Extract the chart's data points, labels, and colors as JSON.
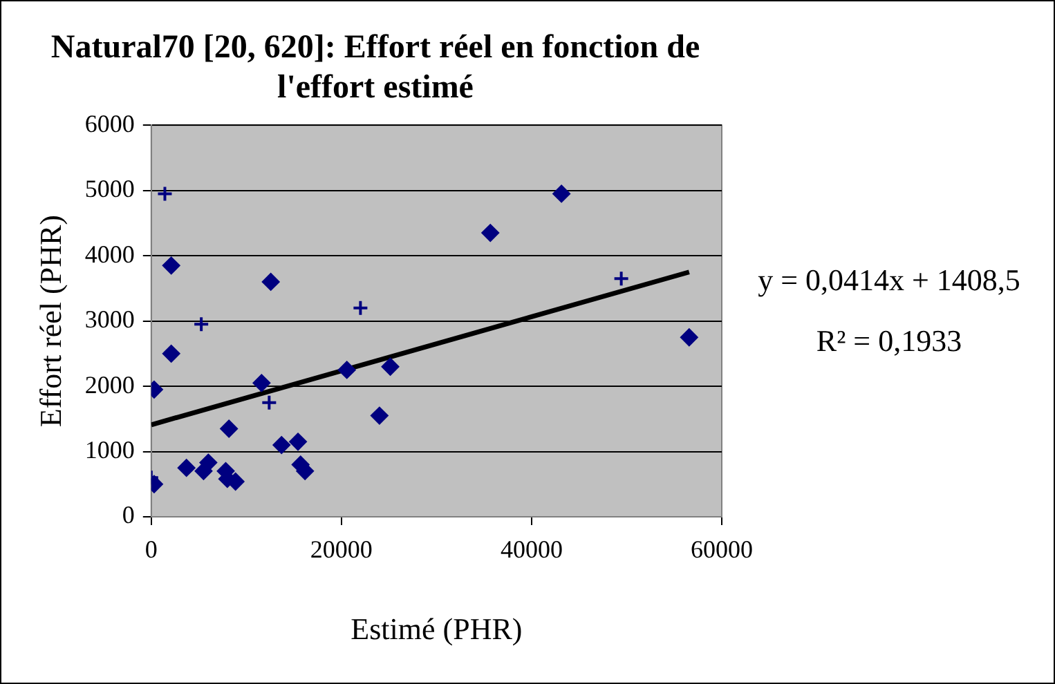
{
  "chart_data": {
    "type": "scatter",
    "title": "Natural70 [20, 620]: Effort réel en fonction de l'effort estimé",
    "xlabel": "Estimé (PHR)",
    "ylabel": "Effort réel (PHR)",
    "xlim": [
      0,
      60000
    ],
    "xticks": [
      0,
      20000,
      40000,
      60000
    ],
    "ylim": [
      0,
      6000
    ],
    "yticks": [
      0,
      1000,
      2000,
      3000,
      4000,
      5000,
      6000
    ],
    "grid": "y",
    "legend": false,
    "marker": "diamond",
    "series": [
      {
        "color": "#000080",
        "x": [
          300,
          300,
          2100,
          2100,
          3700,
          5500,
          6000,
          7830,
          8000,
          8860,
          8170,
          11600,
          12570,
          13700,
          15430,
          15700,
          16170,
          20570,
          25140,
          24000,
          35660,
          43140,
          56570
        ],
        "values": [
          500,
          1950,
          2500,
          3850,
          750,
          700,
          830,
          700,
          580,
          540,
          1350,
          2050,
          3600,
          1100,
          1150,
          800,
          700,
          2250,
          2300,
          1550,
          4350,
          4950,
          2750
        ]
      },
      {
        "color": "#000080",
        "marker": "cross",
        "x": [
          0,
          1430,
          5260,
          12400,
          22000,
          49430
        ],
        "values": [
          600,
          4950,
          2950,
          1750,
          3200,
          3650
        ]
      },
      {
        "type": "line",
        "color": "#000000",
        "marker": "none",
        "x": [
          0,
          56570
        ],
        "values": [
          1410,
          3750
        ]
      }
    ],
    "annotations": [
      "y = 0,0414x + 1408,5",
      "R² = 0,1933"
    ]
  }
}
